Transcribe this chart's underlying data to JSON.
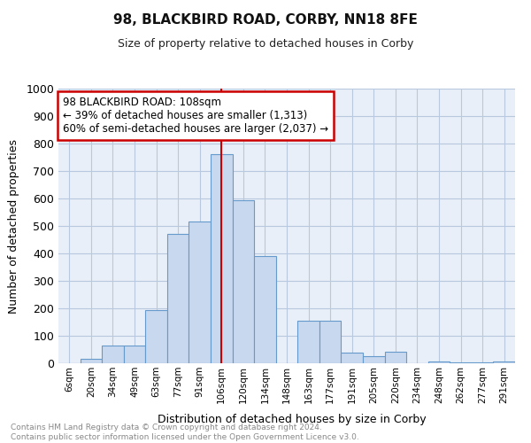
{
  "title1": "98, BLACKBIRD ROAD, CORBY, NN18 8FE",
  "title2": "Size of property relative to detached houses in Corby",
  "xlabel": "Distribution of detached houses by size in Corby",
  "ylabel": "Number of detached properties",
  "categories": [
    "6sqm",
    "20sqm",
    "34sqm",
    "49sqm",
    "63sqm",
    "77sqm",
    "91sqm",
    "106sqm",
    "120sqm",
    "134sqm",
    "148sqm",
    "163sqm",
    "177sqm",
    "191sqm",
    "205sqm",
    "220sqm",
    "234sqm",
    "248sqm",
    "262sqm",
    "277sqm",
    "291sqm"
  ],
  "values": [
    0,
    15,
    63,
    63,
    195,
    470,
    515,
    760,
    595,
    390,
    0,
    155,
    155,
    38,
    25,
    42,
    0,
    7,
    2,
    2,
    5
  ],
  "bar_color": "#c8d8ee",
  "bar_edge_color": "#6699cc",
  "vline_color": "#cc0000",
  "annotation_text": "98 BLACKBIRD ROAD: 108sqm\n← 39% of detached houses are smaller (1,313)\n60% of semi-detached houses are larger (2,037) →",
  "annotation_box_edge": "#cc0000",
  "footer": "Contains HM Land Registry data © Crown copyright and database right 2024.\nContains public sector information licensed under the Open Government Licence v3.0.",
  "bg_color": "#ffffff",
  "plot_bg_color": "#e8eff8",
  "grid_color": "#b8c8de",
  "ylim": [
    0,
    1000
  ],
  "yticks": [
    0,
    100,
    200,
    300,
    400,
    500,
    600,
    700,
    800,
    900,
    1000
  ],
  "vline_idx": 7
}
